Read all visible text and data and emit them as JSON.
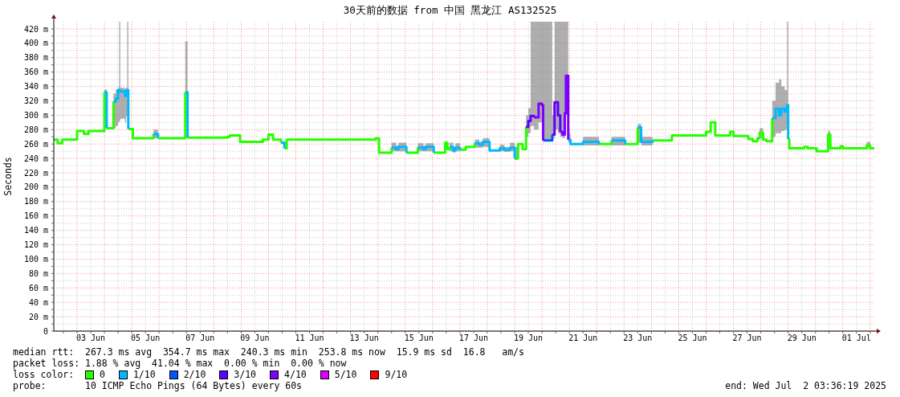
{
  "chart_data": {
    "type": "step",
    "title": "30天前的数据 from 中国 黑龙江 AS132525",
    "ylabel": "Seconds",
    "xlim": [
      "2025-06-02T03:36",
      "2025-07-02T03:36"
    ],
    "xticks": [
      {
        "value": "2025-06-02T12:00",
        "label": null
      },
      {
        "value": "2025-06-03T00:00",
        "label": null
      },
      {
        "value": "2025-06-03T12:00",
        "label": "03 Jun"
      },
      {
        "value": "2025-06-04T00:00",
        "label": null
      },
      {
        "value": "2025-06-04T12:00",
        "label": null
      },
      {
        "value": "2025-06-05T00:00",
        "label": null
      },
      {
        "value": "2025-06-05T12:00",
        "label": "05 Jun"
      },
      {
        "value": "2025-06-06T00:00",
        "label": null
      },
      {
        "value": "2025-06-06T12:00",
        "label": null
      },
      {
        "value": "2025-06-07T00:00",
        "label": null
      },
      {
        "value": "2025-06-07T12:00",
        "label": "07 Jun"
      },
      {
        "value": "2025-06-08T00:00",
        "label": null
      },
      {
        "value": "2025-06-08T12:00",
        "label": null
      },
      {
        "value": "2025-06-09T00:00",
        "label": null
      },
      {
        "value": "2025-06-09T12:00",
        "label": "09 Jun"
      },
      {
        "value": "2025-06-10T00:00",
        "label": null
      },
      {
        "value": "2025-06-10T12:00",
        "label": null
      },
      {
        "value": "2025-06-11T00:00",
        "label": null
      },
      {
        "value": "2025-06-11T12:00",
        "label": "11 Jun"
      },
      {
        "value": "2025-06-12T00:00",
        "label": null
      },
      {
        "value": "2025-06-12T12:00",
        "label": null
      },
      {
        "value": "2025-06-13T00:00",
        "label": null
      },
      {
        "value": "2025-06-13T12:00",
        "label": "13 Jun"
      },
      {
        "value": "2025-06-14T00:00",
        "label": null
      },
      {
        "value": "2025-06-14T12:00",
        "label": null
      },
      {
        "value": "2025-06-15T00:00",
        "label": null
      },
      {
        "value": "2025-06-15T12:00",
        "label": "15 Jun"
      },
      {
        "value": "2025-06-16T00:00",
        "label": null
      },
      {
        "value": "2025-06-16T12:00",
        "label": null
      },
      {
        "value": "2025-06-17T00:00",
        "label": null
      },
      {
        "value": "2025-06-17T12:00",
        "label": "17 Jun"
      },
      {
        "value": "2025-06-18T00:00",
        "label": null
      },
      {
        "value": "2025-06-18T12:00",
        "label": null
      },
      {
        "value": "2025-06-19T00:00",
        "label": null
      },
      {
        "value": "2025-06-19T12:00",
        "label": "19 Jun"
      },
      {
        "value": "2025-06-20T00:00",
        "label": null
      },
      {
        "value": "2025-06-20T12:00",
        "label": null
      },
      {
        "value": "2025-06-21T00:00",
        "label": null
      },
      {
        "value": "2025-06-21T12:00",
        "label": "21 Jun"
      },
      {
        "value": "2025-06-22T00:00",
        "label": null
      },
      {
        "value": "2025-06-22T12:00",
        "label": null
      },
      {
        "value": "2025-06-23T00:00",
        "label": null
      },
      {
        "value": "2025-06-23T12:00",
        "label": "23 Jun"
      },
      {
        "value": "2025-06-24T00:00",
        "label": null
      },
      {
        "value": "2025-06-24T12:00",
        "label": null
      },
      {
        "value": "2025-06-25T00:00",
        "label": null
      },
      {
        "value": "2025-06-25T12:00",
        "label": "25 Jun"
      },
      {
        "value": "2025-06-26T00:00",
        "label": null
      },
      {
        "value": "2025-06-26T12:00",
        "label": null
      },
      {
        "value": "2025-06-27T00:00",
        "label": null
      },
      {
        "value": "2025-06-27T12:00",
        "label": "27 Jun"
      },
      {
        "value": "2025-06-28T00:00",
        "label": null
      },
      {
        "value": "2025-06-28T12:00",
        "label": null
      },
      {
        "value": "2025-06-29T00:00",
        "label": null
      },
      {
        "value": "2025-06-29T12:00",
        "label": "29 Jun"
      },
      {
        "value": "2025-06-30T00:00",
        "label": null
      },
      {
        "value": "2025-06-30T12:00",
        "label": null
      },
      {
        "value": "2025-07-01T00:00",
        "label": null
      },
      {
        "value": "2025-07-01T12:00",
        "label": "01 Jul"
      },
      {
        "value": "2025-07-02T00:00",
        "label": null
      }
    ],
    "ylim": [
      0,
      430
    ],
    "yticks": [
      0,
      {
        "value": 10,
        "label": null
      },
      {
        "value": 20,
        "label": "20 m"
      },
      {
        "value": 30,
        "label": null
      },
      {
        "value": 40,
        "label": "40 m"
      },
      {
        "value": 50,
        "label": null
      },
      {
        "value": 60,
        "label": "60 m"
      },
      {
        "value": 70,
        "label": null
      },
      {
        "value": 80,
        "label": "80 m"
      },
      {
        "value": 90,
        "label": null
      },
      {
        "value": 100,
        "label": "100 m"
      },
      {
        "value": 110,
        "label": null
      },
      {
        "value": 120,
        "label": "120 m"
      },
      {
        "value": 130,
        "label": null
      },
      {
        "value": 140,
        "label": "140 m"
      },
      {
        "value": 150,
        "label": null
      },
      {
        "value": 160,
        "label": "160 m"
      },
      {
        "value": 170,
        "label": null
      },
      {
        "value": 180,
        "label": "180 m"
      },
      {
        "value": 190,
        "label": null
      },
      {
        "value": 200,
        "label": "200 m"
      },
      {
        "value": 210,
        "label": null
      },
      {
        "value": 220,
        "label": "220 m"
      },
      {
        "value": 230,
        "label": null
      },
      {
        "value": 240,
        "label": "240 m"
      },
      {
        "value": 250,
        "label": null
      },
      {
        "value": 260,
        "label": "260 m"
      },
      {
        "value": 270,
        "label": null
      },
      {
        "value": 280,
        "label": "280 m"
      },
      {
        "value": 290,
        "label": null
      },
      {
        "value": 300,
        "label": "300 m"
      },
      {
        "value": 310,
        "label": null
      },
      {
        "value": 320,
        "label": "320 m"
      },
      {
        "value": 330,
        "label": null
      },
      {
        "value": 340,
        "label": "340 m"
      },
      {
        "value": 350,
        "label": null
      },
      {
        "value": 360,
        "label": "360 m"
      },
      {
        "value": 370,
        "label": null
      },
      {
        "value": 380,
        "label": "380 m"
      },
      {
        "value": 390,
        "label": null
      },
      {
        "value": 400,
        "label": "400 m"
      },
      {
        "value": 410,
        "label": null
      },
      {
        "value": 420,
        "label": "420 m"
      }
    ],
    "grid": true,
    "legend": "bottom",
    "legend_title": "loss color:",
    "annotations": [
      "median rtt:  267.3 ms avg  354.7 ms max  240.3 ms min  253.8 ms now  15.9 ms sd  16.8   am/s",
      "packet loss: 1.88 % avg  41.04 % max  0.00 % min  0.00 % now",
      "probe:       10 ICMP Echo Pings (64 Bytes) every 60s",
      "end: Wed Jul  2 03:36:19 2025"
    ],
    "x": [
      "2025-06-02T03:36",
      "2025-06-02T07:00",
      "2025-06-02T11:00",
      "2025-06-03T00:00",
      "2025-06-03T06:00",
      "2025-06-03T10:00",
      "2025-06-04T00:00",
      "2025-06-04T01:00",
      "2025-06-04T02:00",
      "2025-06-04T05:00",
      "2025-06-04T08:00",
      "2025-06-04T10:00",
      "2025-06-04T12:00",
      "2025-06-04T13:00",
      "2025-06-04T14:00",
      "2025-06-04T18:00",
      "2025-06-04T19:00",
      "2025-06-04T20:00",
      "2025-06-04T21:00",
      "2025-06-05T01:00",
      "2025-06-05T19:00",
      "2025-06-05T21:00",
      "2025-06-05T23:00",
      "2025-06-06T11:00",
      "2025-06-06T23:00",
      "2025-06-07T00:00",
      "2025-06-07T01:00",
      "2025-06-08T12:00",
      "2025-06-08T14:00",
      "2025-06-08T23:00",
      "2025-06-09T19:00",
      "2025-06-10T00:00",
      "2025-06-10T04:00",
      "2025-06-10T11:00",
      "2025-06-10T12:00",
      "2025-06-10T14:00",
      "2025-06-10T16:00",
      "2025-06-13T22:00",
      "2025-06-14T01:00",
      "2025-06-14T12:00",
      "2025-06-14T16:00",
      "2025-06-14T18:00",
      "2025-06-15T01:00",
      "2025-06-15T06:00",
      "2025-06-15T11:00",
      "2025-06-15T16:00",
      "2025-06-15T18:00",
      "2025-06-16T01:00",
      "2025-06-16T11:00",
      "2025-06-16T13:00",
      "2025-06-16T15:00",
      "2025-06-16T18:00",
      "2025-06-16T20:00",
      "2025-06-17T00:00",
      "2025-06-17T05:00",
      "2025-06-17T13:00",
      "2025-06-17T17:00",
      "2025-06-17T20:00",
      "2025-06-18T02:00",
      "2025-06-18T06:00",
      "2025-06-18T11:00",
      "2025-06-18T15:00",
      "2025-06-18T20:00",
      "2025-06-19T00:00",
      "2025-06-19T03:00",
      "2025-06-19T07:00",
      "2025-06-19T10:00",
      "2025-06-19T12:00",
      "2025-06-19T14:00",
      "2025-06-19T17:00",
      "2025-06-19T21:00",
      "2025-06-20T00:00",
      "2025-06-20T01:00",
      "2025-06-20T09:00",
      "2025-06-20T11:00",
      "2025-06-20T14:00",
      "2025-06-20T16:00",
      "2025-06-20T18:00",
      "2025-06-20T20:00",
      "2025-06-20T21:00",
      "2025-06-20T23:00",
      "2025-06-21T01:00",
      "2025-06-21T06:00",
      "2025-06-21T12:00",
      "2025-06-21T19:00",
      "2025-06-22T02:00",
      "2025-06-22T07:00",
      "2025-06-22T13:00",
      "2025-06-22T19:00",
      "2025-06-23T01:00",
      "2025-06-23T06:00",
      "2025-06-23T12:00",
      "2025-06-23T15:00",
      "2025-06-24T01:00",
      "2025-06-24T18:00",
      "2025-06-26T00:00",
      "2025-06-26T04:00",
      "2025-06-26T08:00",
      "2025-06-26T21:00",
      "2025-06-27T00:00",
      "2025-06-27T13:00",
      "2025-06-27T17:00",
      "2025-06-27T21:00",
      "2025-06-27T23:00",
      "2025-06-28T02:00",
      "2025-06-28T05:00",
      "2025-06-28T10:00",
      "2025-06-28T13:00",
      "2025-06-28T16:00",
      "2025-06-28T18:00",
      "2025-06-28T21:00",
      "2025-06-28T23:00",
      "2025-06-29T00:00",
      "2025-06-29T01:00",
      "2025-06-29T14:00",
      "2025-06-29T17:00",
      "2025-06-30T01:00",
      "2025-06-30T11:00",
      "2025-06-30T13:00",
      "2025-06-30T22:00",
      "2025-07-01T00:00",
      "2025-07-01T21:00",
      "2025-07-01T22:00",
      "2025-07-02T00:00",
      "2025-07-02T03:36"
    ],
    "series": [
      {
        "name": "0",
        "color": "#26ff00",
        "values": [
          266,
          261,
          266,
          278,
          274,
          278,
          332,
          null,
          282,
          282,
          319,
          null,
          null,
          null,
          null,
          null,
          null,
          null,
          281,
          268,
          274,
          null,
          268,
          268,
          332,
          null,
          269,
          270,
          272,
          263,
          266,
          273,
          266,
          262,
          null,
          254,
          266,
          268,
          248,
          255,
          null,
          null,
          248,
          248,
          255,
          null,
          null,
          248,
          262,
          253,
          256,
          null,
          null,
          252,
          256,
          261,
          null,
          null,
          null,
          null,
          null,
          null,
          null,
          240,
          260,
          253,
          284,
          null,
          null,
          null,
          null,
          null,
          null,
          null,
          null,
          null,
          null,
          null,
          null,
          null,
          null,
          null,
          null,
          null,
          null,
          260,
          260,
          265,
          null,
          260,
          260,
          283,
          null,
          265,
          272,
          277,
          290,
          272,
          277,
          271,
          267,
          264,
          268,
          276,
          266,
          264,
          296,
          null,
          null,
          null,
          null,
          null,
          267,
          254,
          256,
          254,
          250,
          273,
          254,
          257,
          254,
          258,
          258,
          254,
          254
        ],
        "lower": [
          null,
          null,
          null,
          null,
          null,
          null,
          282,
          282,
          282,
          null,
          282,
          285,
          290,
          292,
          295,
          290,
          298,
          300,
          300,
          null,
          268,
          268,
          268,
          null,
          300,
          300,
          300,
          null,
          null,
          null,
          null,
          null,
          null,
          null,
          null,
          null,
          null,
          null,
          null,
          250,
          250,
          250,
          250,
          null,
          250,
          250,
          250,
          250,
          null,
          null,
          250,
          248,
          250,
          250,
          null,
          255,
          255,
          256,
          256,
          null,
          250,
          249,
          250,
          238,
          238,
          null,
          270,
          275,
          285,
          280,
          290,
          275,
          264,
          268,
          280,
          275,
          270,
          268,
          275,
          300,
          262,
          262,
          null,
          258,
          258,
          258,
          null,
          258,
          258,
          258,
          null,
          262,
          258,
          258,
          null,
          null,
          null,
          null,
          null,
          null,
          null,
          null,
          null,
          268,
          268,
          null,
          270,
          275,
          275,
          278,
          280,
          285,
          285,
          null,
          null,
          null,
          null,
          255,
          255,
          null,
          null,
          254,
          254,
          254,
          null
        ],
        "upper": [
          null,
          null,
          null,
          null,
          null,
          null,
          336,
          336,
          336,
          null,
          330,
          336,
          338,
          430,
          338,
          336,
          338,
          430,
          430,
          null,
          280,
          280,
          280,
          null,
          403,
          403,
          403,
          null,
          null,
          null,
          null,
          null,
          null,
          null,
          null,
          null,
          null,
          null,
          null,
          262,
          258,
          262,
          262,
          null,
          261,
          258,
          261,
          261,
          null,
          null,
          262,
          256,
          261,
          261,
          null,
          266,
          263,
          268,
          268,
          null,
          259,
          256,
          262,
          256,
          256,
          null,
          300,
          310,
          430,
          430,
          430,
          430,
          430,
          300,
          430,
          430,
          430,
          430,
          430,
          430,
          275,
          275,
          null,
          270,
          270,
          270,
          null,
          270,
          270,
          270,
          null,
          288,
          270,
          270,
          null,
          null,
          null,
          null,
          null,
          null,
          null,
          null,
          null,
          282,
          282,
          null,
          320,
          345,
          350,
          340,
          335,
          430,
          430,
          null,
          null,
          null,
          null,
          278,
          278,
          null,
          null,
          263,
          263,
          263,
          null
        ]
      },
      {
        "name": "1/10",
        "color": "#00b8ff",
        "values": [
          null,
          null,
          null,
          null,
          null,
          null,
          332,
          332,
          282,
          null,
          319,
          323,
          335,
          335,
          333,
          327,
          335,
          335,
          281,
          null,
          274,
          274,
          268,
          null,
          332,
          332,
          269,
          null,
          null,
          null,
          null,
          null,
          null,
          262,
          262,
          254,
          null,
          null,
          null,
          255,
          253,
          256,
          248,
          null,
          255,
          253,
          256,
          248,
          null,
          null,
          256,
          251,
          255,
          252,
          null,
          261,
          259,
          263,
          251,
          251,
          254,
          252,
          255,
          240,
          null,
          null,
          null,
          null,
          null,
          null,
          null,
          null,
          null,
          null,
          null,
          null,
          null,
          null,
          null,
          null,
          266,
          260,
          260,
          263,
          263,
          260,
          null,
          265,
          265,
          260,
          null,
          283,
          263,
          265,
          null,
          null,
          null,
          null,
          null,
          null,
          null,
          null,
          null,
          null,
          null,
          null,
          296,
          309,
          300,
          309,
          305,
          314,
          267,
          null,
          null,
          null,
          null,
          null,
          null,
          null,
          null,
          null,
          null,
          null,
          null
        ]
      },
      {
        "name": "2/10",
        "color": "#0059ff",
        "values": [
          null,
          null,
          null,
          null,
          null,
          null,
          null,
          null,
          null,
          null,
          null,
          null,
          null,
          null,
          null,
          null,
          null,
          null,
          null,
          null,
          null,
          null,
          null,
          null,
          null,
          null,
          null,
          null,
          null,
          null,
          null,
          null,
          null,
          null,
          null,
          null,
          null,
          null,
          null,
          null,
          null,
          null,
          null,
          null,
          null,
          null,
          null,
          null,
          null,
          null,
          null,
          null,
          null,
          null,
          null,
          null,
          null,
          null,
          null,
          null,
          null,
          null,
          null,
          null,
          null,
          null,
          null,
          null,
          null,
          null,
          null,
          null,
          265,
          273,
          null,
          null,
          null,
          null,
          null,
          null,
          null,
          null,
          null,
          null,
          null,
          null,
          null,
          null,
          null,
          null,
          null,
          null,
          null,
          null,
          null,
          null,
          null,
          null,
          null,
          null,
          null,
          null,
          null,
          null,
          null,
          null,
          null,
          null,
          null,
          null,
          null,
          null,
          null,
          null,
          null,
          null,
          null,
          null,
          null,
          null,
          null,
          null,
          null,
          null,
          null
        ]
      },
      {
        "name": "3/10",
        "color": "#5e00ff",
        "values": [
          null,
          null,
          null,
          null,
          null,
          null,
          null,
          null,
          null,
          null,
          null,
          null,
          null,
          null,
          null,
          null,
          null,
          null,
          null,
          null,
          null,
          null,
          null,
          null,
          null,
          null,
          null,
          null,
          null,
          null,
          null,
          null,
          null,
          null,
          null,
          null,
          null,
          null,
          null,
          null,
          null,
          null,
          null,
          null,
          null,
          null,
          null,
          null,
          null,
          null,
          null,
          null,
          null,
          null,
          null,
          null,
          null,
          null,
          null,
          null,
          null,
          null,
          null,
          null,
          null,
          null,
          284,
          292,
          299,
          297,
          null,
          null,
          null,
          273,
          318,
          300,
          277,
          null,
          null,
          null,
          null,
          null,
          null,
          null,
          null,
          null,
          null,
          null,
          null,
          null,
          null,
          null,
          null,
          null,
          null,
          null,
          null,
          null,
          null,
          null,
          null,
          null,
          null,
          null,
          null,
          null,
          null,
          null,
          null,
          null,
          null,
          null,
          null,
          null,
          null,
          null,
          null,
          null,
          null,
          null,
          null,
          null,
          null,
          null,
          null
        ]
      },
      {
        "name": "4/10",
        "color": "#7e00ff",
        "values": [
          null,
          null,
          null,
          null,
          null,
          null,
          null,
          null,
          null,
          null,
          null,
          null,
          null,
          null,
          null,
          null,
          null,
          null,
          null,
          null,
          null,
          null,
          null,
          null,
          null,
          null,
          null,
          null,
          null,
          null,
          null,
          null,
          null,
          null,
          null,
          null,
          null,
          null,
          null,
          null,
          null,
          null,
          null,
          null,
          null,
          null,
          null,
          null,
          null,
          null,
          null,
          null,
          null,
          null,
          null,
          null,
          null,
          null,
          null,
          null,
          null,
          null,
          null,
          null,
          null,
          null,
          null,
          null,
          null,
          297,
          316,
          314,
          265,
          null,
          null,
          null,
          277,
          273,
          303,
          355,
          266,
          null,
          null,
          null,
          null,
          null,
          null,
          null,
          null,
          null,
          null,
          null,
          null,
          null,
          null,
          null,
          null,
          null,
          null,
          null,
          null,
          null,
          null,
          null,
          null,
          null,
          null,
          null,
          null,
          null,
          null,
          null,
          null,
          null,
          null,
          null,
          null,
          null,
          null,
          null,
          null,
          null,
          null,
          null,
          null
        ]
      },
      {
        "name": "5/10",
        "color": "#dd00ff",
        "values": [
          null,
          null,
          null,
          null,
          null,
          null,
          null,
          null,
          null,
          null,
          null,
          null,
          null,
          null,
          null,
          null,
          null,
          null,
          null,
          null,
          null,
          null,
          null,
          null,
          null,
          null,
          null,
          null,
          null,
          null,
          null,
          null,
          null,
          null,
          null,
          null,
          null,
          null,
          null,
          null,
          null,
          null,
          null,
          null,
          null,
          null,
          null,
          null,
          null,
          null,
          null,
          null,
          null,
          null,
          null,
          null,
          null,
          null,
          null,
          null,
          null,
          null,
          null,
          null,
          null,
          null,
          null,
          null,
          null,
          null,
          null,
          null,
          null,
          null,
          null,
          null,
          null,
          null,
          null,
          null,
          null,
          null,
          null,
          null,
          null,
          null,
          null,
          null,
          null,
          null,
          null,
          null,
          null,
          null,
          null,
          null,
          null,
          null,
          null,
          null,
          null,
          null,
          null,
          null,
          null,
          null,
          null,
          null,
          null,
          null,
          null,
          null,
          null,
          null,
          null,
          null,
          null,
          null,
          null,
          null,
          null,
          null,
          null,
          null,
          null
        ]
      },
      {
        "name": "9/10",
        "color": "#ff0000",
        "values": [
          null,
          null,
          null,
          null,
          null,
          null,
          null,
          null,
          null,
          null,
          null,
          null,
          null,
          null,
          null,
          null,
          null,
          null,
          null,
          null,
          null,
          null,
          null,
          null,
          null,
          null,
          null,
          null,
          null,
          null,
          null,
          null,
          null,
          null,
          null,
          null,
          null,
          null,
          null,
          null,
          null,
          null,
          null,
          null,
          null,
          null,
          null,
          null,
          null,
          null,
          null,
          null,
          null,
          null,
          null,
          null,
          null,
          null,
          null,
          null,
          null,
          null,
          null,
          null,
          null,
          null,
          null,
          null,
          null,
          null,
          null,
          null,
          null,
          null,
          null,
          null,
          null,
          null,
          null,
          null,
          null,
          null,
          null,
          null,
          null,
          null,
          null,
          null,
          null,
          null,
          null,
          null,
          null,
          null,
          null,
          null,
          null,
          null,
          null,
          null,
          null,
          null,
          null,
          null,
          null,
          null,
          null,
          null,
          null,
          null,
          null,
          null,
          null,
          null,
          null,
          null,
          null,
          null,
          null,
          null,
          null,
          null,
          null,
          null,
          null
        ]
      }
    ]
  }
}
